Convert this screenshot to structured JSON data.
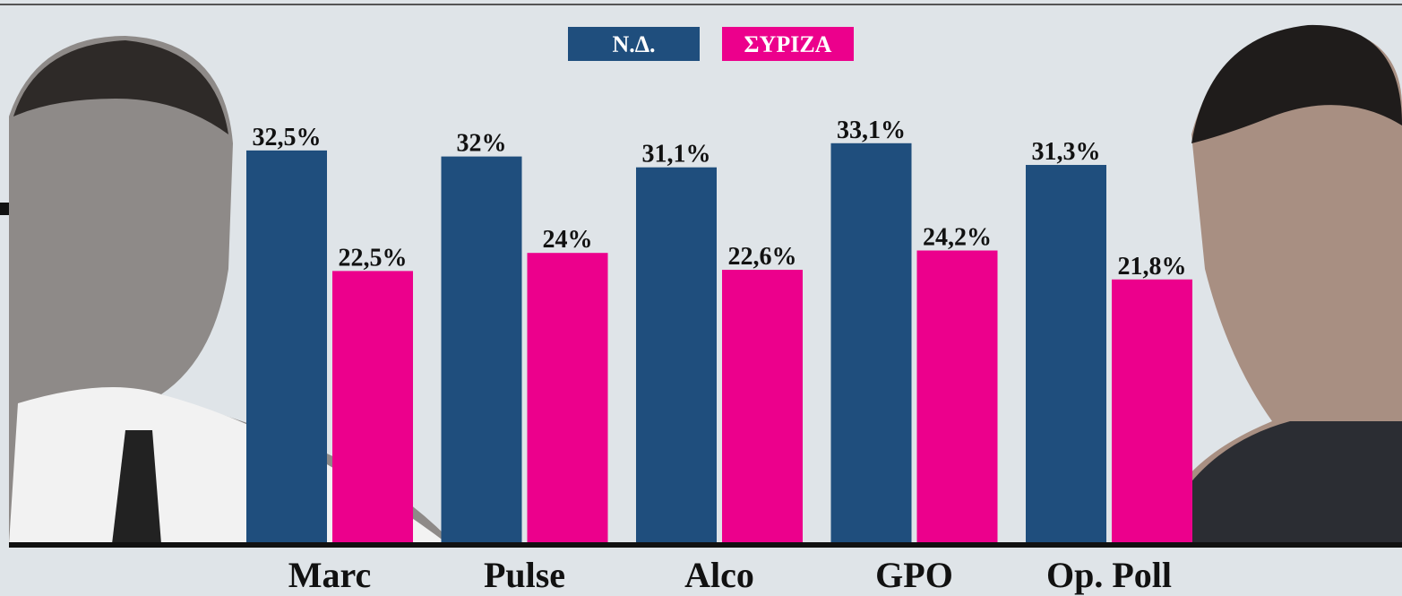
{
  "chart_data": {
    "type": "bar",
    "categories": [
      "Marc",
      "Pulse",
      "Alco",
      "GPO",
      "Op. Poll"
    ],
    "series": [
      {
        "name": "Ν.Δ.",
        "color": "#1f4e7d",
        "values": [
          32.5,
          32,
          31.1,
          33.1,
          31.3
        ],
        "value_labels": [
          "32,5%",
          "32%",
          "31,1%",
          "33,1%",
          "31,3%"
        ]
      },
      {
        "name": "ΣΥΡΙΖΑ",
        "color": "#ec008c",
        "values": [
          22.5,
          24,
          22.6,
          24.2,
          21.8
        ],
        "value_labels": [
          "22,5%",
          "24%",
          "22,6%",
          "24,2%",
          "21,8%"
        ]
      }
    ]
  }
}
